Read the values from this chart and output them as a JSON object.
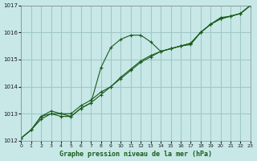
{
  "title": "Graphe pression niveau de la mer (hPa)",
  "bg_color": "#c8e8e8",
  "grid_color": "#a0c8c8",
  "line_color": "#1a5c1a",
  "xlim": [
    0,
    23
  ],
  "ylim": [
    1012,
    1017
  ],
  "yticks": [
    1012,
    1013,
    1014,
    1015,
    1016,
    1017
  ],
  "xticks": [
    0,
    1,
    2,
    3,
    4,
    5,
    6,
    7,
    8,
    9,
    10,
    11,
    12,
    13,
    14,
    15,
    16,
    17,
    18,
    19,
    20,
    21,
    22,
    23
  ],
  "series1_x": [
    0,
    1,
    2,
    3,
    4,
    5,
    6,
    7,
    8,
    9,
    10,
    11,
    12,
    13,
    14,
    15,
    16,
    17,
    18,
    19,
    20,
    21,
    22,
    23
  ],
  "series1_y": [
    1012.1,
    1012.4,
    1012.8,
    1013.0,
    1013.0,
    1013.0,
    1013.3,
    1013.5,
    1013.8,
    1014.0,
    1014.3,
    1014.6,
    1014.9,
    1015.1,
    1015.3,
    1015.4,
    1015.5,
    1015.6,
    1016.0,
    1016.3,
    1016.5,
    1016.6,
    1016.7,
    1017.0
  ],
  "series2_x": [
    0,
    1,
    2,
    3,
    4,
    5,
    6,
    7,
    8,
    9,
    10,
    11,
    12,
    13,
    14,
    15,
    16,
    17,
    18,
    19,
    20,
    21,
    22,
    23
  ],
  "series2_y": [
    1012.1,
    1012.4,
    1012.9,
    1013.1,
    1013.0,
    1012.9,
    1013.2,
    1013.4,
    1013.7,
    1014.0,
    1014.35,
    1014.65,
    1014.95,
    1015.15,
    1015.3,
    1015.4,
    1015.5,
    1015.6,
    1016.0,
    1016.3,
    1016.5,
    1016.6,
    1016.7,
    1017.0
  ],
  "series3_x": [
    0,
    1,
    2,
    3,
    4,
    5,
    6,
    7,
    8,
    9,
    10,
    11,
    12,
    13,
    14,
    15,
    16,
    17,
    18,
    19,
    20,
    21,
    22,
    23
  ],
  "series3_y": [
    1012.1,
    1012.4,
    1012.9,
    1013.0,
    1012.9,
    1012.9,
    1013.2,
    1013.4,
    1014.7,
    1015.45,
    1015.75,
    1015.9,
    1015.9,
    1015.65,
    1015.3,
    1015.4,
    1015.5,
    1015.55,
    1016.0,
    1016.3,
    1016.55,
    1016.6,
    1016.7,
    1017.0
  ]
}
